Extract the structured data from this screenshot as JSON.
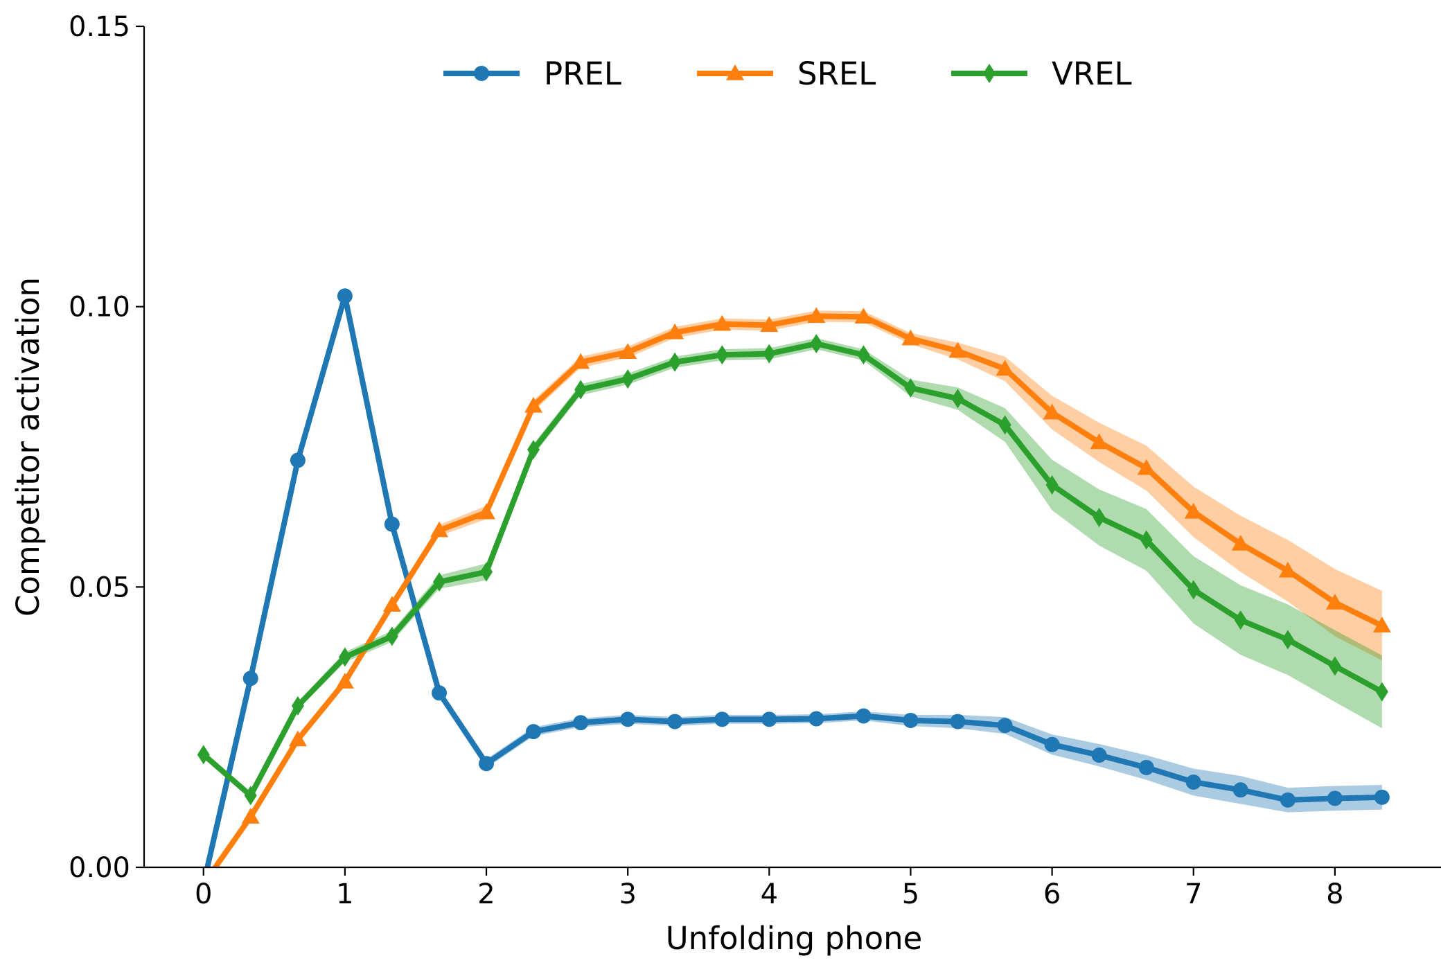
{
  "chart_data": {
    "type": "line",
    "title": "",
    "xlabel": "Unfolding phone",
    "ylabel": "Competitor activation",
    "xlim": [
      -0.42,
      8.75
    ],
    "ylim": [
      0.0,
      0.15
    ],
    "xticks": [
      0,
      1,
      2,
      3,
      4,
      5,
      6,
      7,
      8
    ],
    "xtick_labels": [
      "0",
      "1",
      "2",
      "3",
      "4",
      "5",
      "6",
      "7",
      "8"
    ],
    "yticks": [
      0.0,
      0.05,
      0.1,
      0.15
    ],
    "ytick_labels": [
      "0.00",
      "0.05",
      "0.10",
      "0.15"
    ],
    "grid": false,
    "legend_position": "top-center",
    "x": [
      0,
      0.333,
      0.667,
      1,
      1.333,
      1.667,
      2,
      2.333,
      2.667,
      3,
      3.333,
      3.667,
      4,
      4.333,
      4.667,
      5,
      5.333,
      5.667,
      6,
      6.333,
      6.667,
      7,
      7.333,
      7.667,
      8,
      8.333
    ],
    "series": [
      {
        "name": "PREL",
        "color": "#1f77b4",
        "marker": "circle",
        "values": [
          -0.003,
          0.0337,
          0.0726,
          0.1019,
          0.0612,
          0.0311,
          0.0185,
          0.0242,
          0.0258,
          0.0264,
          0.026,
          0.0264,
          0.0264,
          0.0265,
          0.027,
          0.0262,
          0.026,
          0.0253,
          0.0219,
          0.02,
          0.0178,
          0.0152,
          0.0138,
          0.012,
          0.0123,
          0.0125
        ],
        "band": [
          0.0005,
          0.0005,
          0.0005,
          0.0005,
          0.0005,
          0.0005,
          0.0008,
          0.0008,
          0.0008,
          0.0008,
          0.0008,
          0.0008,
          0.0008,
          0.0008,
          0.0008,
          0.001,
          0.0012,
          0.0015,
          0.0018,
          0.002,
          0.0022,
          0.0024,
          0.0025,
          0.0022,
          0.0022,
          0.0022
        ]
      },
      {
        "name": "SREL",
        "color": "#ff7f0e",
        "marker": "triangle",
        "values": [
          -0.003,
          0.009,
          0.0228,
          0.0331,
          0.0468,
          0.0601,
          0.0633,
          0.0823,
          0.0901,
          0.0919,
          0.0954,
          0.0969,
          0.0967,
          0.0983,
          0.0982,
          0.0943,
          0.0921,
          0.0889,
          0.0811,
          0.0758,
          0.0712,
          0.0634,
          0.0577,
          0.0529,
          0.0472,
          0.0431
        ],
        "band": [
          0.0005,
          0.0005,
          0.0006,
          0.0007,
          0.0008,
          0.001,
          0.0012,
          0.001,
          0.001,
          0.001,
          0.001,
          0.001,
          0.001,
          0.001,
          0.001,
          0.001,
          0.0015,
          0.0022,
          0.003,
          0.0035,
          0.004,
          0.0045,
          0.005,
          0.0055,
          0.006,
          0.0062
        ]
      },
      {
        "name": "VREL",
        "color": "#2ca02c",
        "marker": "diamond",
        "values": [
          0.0201,
          0.0128,
          0.0288,
          0.0375,
          0.0412,
          0.0509,
          0.0527,
          0.0745,
          0.0852,
          0.0871,
          0.0901,
          0.0914,
          0.0916,
          0.0934,
          0.0914,
          0.0855,
          0.0836,
          0.0789,
          0.0682,
          0.0624,
          0.0584,
          0.0495,
          0.0441,
          0.0406,
          0.0359,
          0.0313
        ],
        "band": [
          0.0005,
          0.0005,
          0.0007,
          0.0009,
          0.001,
          0.0012,
          0.0015,
          0.001,
          0.001,
          0.001,
          0.001,
          0.001,
          0.001,
          0.001,
          0.001,
          0.0015,
          0.002,
          0.003,
          0.0045,
          0.005,
          0.0055,
          0.006,
          0.0062,
          0.0063,
          0.0064,
          0.0065
        ]
      }
    ]
  }
}
